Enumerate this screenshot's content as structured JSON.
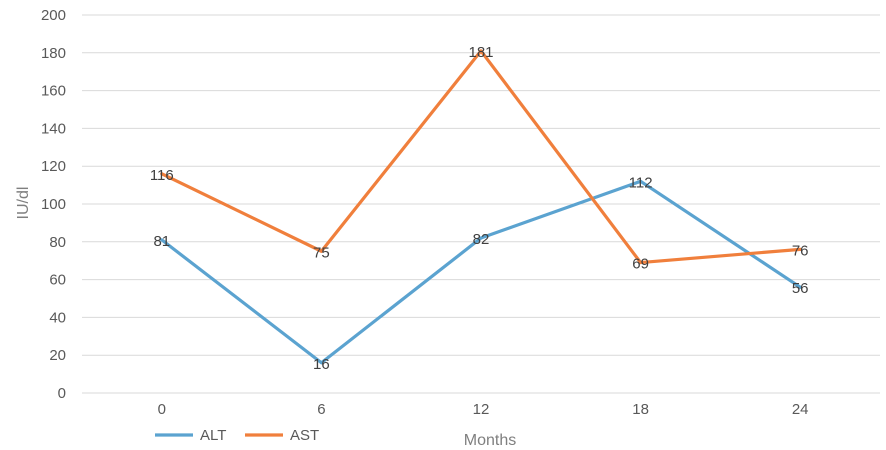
{
  "chart_data": {
    "type": "line",
    "categories": [
      "0",
      "6",
      "12",
      "18",
      "24"
    ],
    "xlabel": "Months",
    "ylabel": "IU/dl",
    "ylim": [
      0,
      200
    ],
    "yticks": [
      "0",
      "20",
      "40",
      "60",
      "80",
      "100",
      "120",
      "140",
      "160",
      "180",
      "200"
    ],
    "grid": true,
    "legend_position": "bottom-left",
    "series": [
      {
        "name": "ALT",
        "color": "#5ba3d0",
        "values": [
          81,
          16,
          82,
          112,
          56
        ],
        "labels": [
          "81",
          "16",
          "82",
          "112",
          "56"
        ]
      },
      {
        "name": "AST",
        "color": "#f07f3c",
        "values": [
          116,
          75,
          181,
          69,
          76
        ],
        "labels": [
          "116",
          "75",
          "181",
          "69",
          "76"
        ]
      }
    ]
  }
}
